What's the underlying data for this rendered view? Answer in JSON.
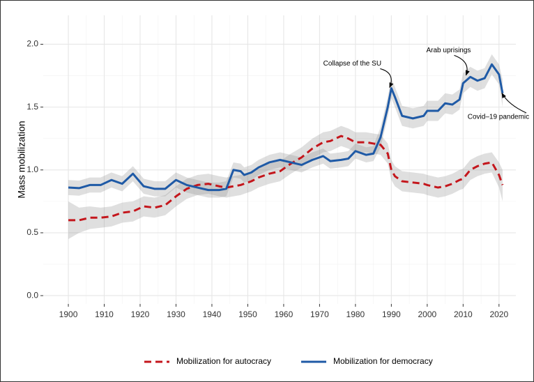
{
  "chart_data": {
    "type": "line",
    "ylabel": "Mass mobilization",
    "x": [
      1900,
      1903,
      1906,
      1909,
      1912,
      1915,
      1918,
      1921,
      1924,
      1927,
      1930,
      1933,
      1936,
      1939,
      1942,
      1944,
      1946,
      1948,
      1949,
      1951,
      1953,
      1956,
      1959,
      1962,
      1965,
      1968,
      1971,
      1973,
      1976,
      1978,
      1980,
      1983,
      1985,
      1987,
      1989,
      1990,
      1991,
      1993,
      1996,
      1999,
      2000,
      2003,
      2005,
      2007,
      2009,
      2010,
      2012,
      2014,
      2016,
      2018,
      2020,
      2021
    ],
    "series": [
      {
        "name": "Mobilization for autocracy",
        "color": "#c4161c",
        "dash": true,
        "values": [
          0.6,
          0.6,
          0.62,
          0.62,
          0.63,
          0.66,
          0.67,
          0.71,
          0.7,
          0.72,
          0.79,
          0.85,
          0.88,
          0.89,
          0.87,
          0.86,
          0.87,
          0.88,
          0.89,
          0.91,
          0.94,
          0.97,
          0.99,
          1.05,
          1.1,
          1.17,
          1.22,
          1.23,
          1.27,
          1.25,
          1.22,
          1.22,
          1.21,
          1.2,
          1.13,
          1.0,
          0.95,
          0.91,
          0.9,
          0.89,
          0.88,
          0.86,
          0.87,
          0.89,
          0.92,
          0.93,
          1.0,
          1.03,
          1.05,
          1.06,
          0.96,
          0.88
        ],
        "lower": [
          0.45,
          0.5,
          0.53,
          0.54,
          0.55,
          0.58,
          0.59,
          0.63,
          0.62,
          0.64,
          0.71,
          0.77,
          0.8,
          0.81,
          0.79,
          0.78,
          0.79,
          0.8,
          0.81,
          0.83,
          0.86,
          0.89,
          0.91,
          0.97,
          1.02,
          1.09,
          1.14,
          1.15,
          1.19,
          1.17,
          1.14,
          1.14,
          1.13,
          1.12,
          1.05,
          0.92,
          0.87,
          0.83,
          0.82,
          0.81,
          0.8,
          0.78,
          0.79,
          0.81,
          0.84,
          0.85,
          0.92,
          0.95,
          0.97,
          0.98,
          0.86,
          0.75
        ],
        "upper": [
          0.75,
          0.7,
          0.71,
          0.7,
          0.71,
          0.74,
          0.75,
          0.79,
          0.78,
          0.8,
          0.87,
          0.93,
          0.96,
          0.97,
          0.95,
          0.94,
          0.95,
          0.96,
          0.97,
          0.99,
          1.02,
          1.05,
          1.07,
          1.13,
          1.18,
          1.25,
          1.3,
          1.31,
          1.35,
          1.33,
          1.3,
          1.3,
          1.29,
          1.28,
          1.21,
          1.08,
          1.03,
          0.99,
          0.98,
          0.97,
          0.96,
          0.94,
          0.95,
          0.97,
          1.0,
          1.01,
          1.08,
          1.11,
          1.13,
          1.14,
          1.06,
          1.0
        ]
      },
      {
        "name": "Mobilization for democracy",
        "color": "#1f5aa6",
        "dash": false,
        "values": [
          0.86,
          0.855,
          0.88,
          0.88,
          0.92,
          0.89,
          0.97,
          0.87,
          0.85,
          0.85,
          0.92,
          0.88,
          0.86,
          0.84,
          0.84,
          0.85,
          1.0,
          0.99,
          0.96,
          0.98,
          1.02,
          1.06,
          1.08,
          1.06,
          1.04,
          1.08,
          1.11,
          1.07,
          1.08,
          1.09,
          1.15,
          1.12,
          1.13,
          1.26,
          1.5,
          1.65,
          1.58,
          1.43,
          1.41,
          1.43,
          1.47,
          1.47,
          1.53,
          1.52,
          1.56,
          1.69,
          1.74,
          1.71,
          1.73,
          1.84,
          1.76,
          1.61
        ],
        "lower": [
          0.8,
          0.795,
          0.82,
          0.82,
          0.86,
          0.83,
          0.91,
          0.81,
          0.79,
          0.79,
          0.86,
          0.82,
          0.8,
          0.78,
          0.78,
          0.79,
          0.94,
          0.93,
          0.9,
          0.92,
          0.96,
          1.0,
          1.02,
          1.0,
          0.98,
          1.02,
          1.05,
          1.01,
          1.02,
          1.03,
          1.09,
          1.06,
          1.07,
          1.18,
          1.42,
          1.57,
          1.5,
          1.35,
          1.33,
          1.35,
          1.39,
          1.39,
          1.45,
          1.44,
          1.48,
          1.61,
          1.66,
          1.63,
          1.65,
          1.76,
          1.68,
          1.5
        ],
        "upper": [
          0.92,
          0.915,
          0.94,
          0.94,
          0.98,
          0.95,
          1.03,
          0.93,
          0.91,
          0.91,
          0.98,
          0.94,
          0.92,
          0.9,
          0.9,
          0.91,
          1.06,
          1.05,
          1.02,
          1.04,
          1.08,
          1.12,
          1.14,
          1.12,
          1.1,
          1.14,
          1.17,
          1.13,
          1.14,
          1.15,
          1.21,
          1.18,
          1.19,
          1.34,
          1.58,
          1.73,
          1.66,
          1.51,
          1.49,
          1.51,
          1.55,
          1.55,
          1.61,
          1.6,
          1.64,
          1.77,
          1.82,
          1.79,
          1.81,
          1.92,
          1.84,
          1.72
        ]
      }
    ],
    "xlim": [
      1893,
      2024.7
    ],
    "ylim": [
      -0.066,
      2.23
    ],
    "xticks": [
      1900,
      1910,
      1920,
      1930,
      1940,
      1950,
      1960,
      1970,
      1980,
      1990,
      2000,
      2010,
      2020
    ],
    "yticks": [
      {
        "value": 0,
        "label": "0.0"
      },
      0.5,
      {
        "value": 1,
        "label": "1.0"
      },
      1.5,
      {
        "value": 2,
        "label": "2.0"
      }
    ],
    "grid": true,
    "legend": "bottom",
    "annotations": [
      {
        "text": "Collapse of the SU",
        "x": 1990,
        "y": 1.65
      },
      {
        "text": "Arab uprisings",
        "x": 2011,
        "y": 1.74
      },
      {
        "text": "Covid–19 pandemic",
        "x": 2021,
        "y": 1.62
      }
    ]
  }
}
